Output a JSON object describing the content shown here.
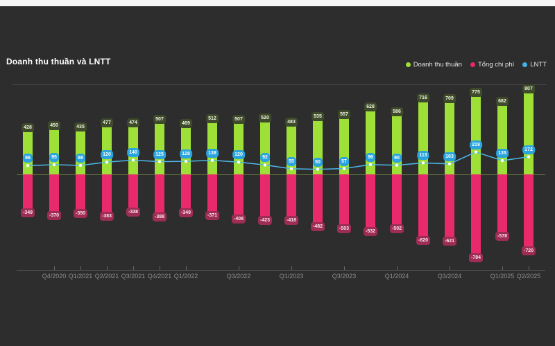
{
  "header": {
    "title": "Doanh thu thuần và LNTT"
  },
  "legend": {
    "items": [
      {
        "label": "Doanh thu thuần",
        "color": "#9ee037"
      },
      {
        "label": "Tổng chi phí",
        "color": "#e8296b"
      },
      {
        "label": "LNTT",
        "color": "#41b1e6"
      }
    ]
  },
  "colors": {
    "background": "#2d2d2d",
    "revenue_bar": "#9ee037",
    "cost_bar": "#e8296b",
    "lntt_line": "#4cb8e8",
    "zero_line": "#66763c",
    "axis_text": "#8f8f8f"
  },
  "chart_data": {
    "type": "bar",
    "title": "Doanh thu thuần và LNTT",
    "xlabel": "",
    "ylabel": "",
    "ylim": [
      -850,
      850
    ],
    "grid": false,
    "legend_position": "top-right",
    "categories": [
      "Q3/2020",
      "Q4/2020",
      "Q1/2021",
      "Q2/2021",
      "Q3/2021",
      "Q4/2021",
      "Q1/2022",
      "Q2/2022",
      "Q3/2022",
      "Q4/2022",
      "Q1/2023",
      "Q2/2023",
      "Q3/2023",
      "Q4/2023",
      "Q1/2024",
      "Q2/2024",
      "Q3/2024",
      "Q4/2024",
      "Q1/2025",
      "Q2/2025"
    ],
    "visible_x_ticks": [
      {
        "index": 1,
        "label": "Q4/2020"
      },
      {
        "index": 2,
        "label": "Q1/2021"
      },
      {
        "index": 3,
        "label": "Q2/2021"
      },
      {
        "index": 4,
        "label": "Q3/2021"
      },
      {
        "index": 5,
        "label": "Q4/2021"
      },
      {
        "index": 6,
        "label": "Q1/2022"
      },
      {
        "index": 8,
        "label": "Q3/2022"
      },
      {
        "index": 10,
        "label": "Q1/2023"
      },
      {
        "index": 12,
        "label": "Q3/2023"
      },
      {
        "index": 14,
        "label": "Q1/2024"
      },
      {
        "index": 16,
        "label": "Q3/2024"
      },
      {
        "index": 18,
        "label": "Q1/2025"
      },
      {
        "index": 19,
        "label": "Q2/2025"
      }
    ],
    "series": [
      {
        "name": "Doanh thu thuần",
        "type": "bar",
        "color": "#9ee037",
        "values": [
          428,
          450,
          435,
          477,
          474,
          507,
          469,
          512,
          507,
          520,
          483,
          535,
          557,
          628,
          586,
          716,
          709,
          775,
          682,
          807
        ]
      },
      {
        "name": "Tổng chi phí",
        "type": "bar",
        "color": "#e8296b",
        "values": [
          -349,
          -370,
          -350,
          -383,
          -338,
          -388,
          -349,
          -371,
          -408,
          -423,
          -418,
          -482,
          -503,
          -532,
          -502,
          -620,
          -621,
          -784,
          -578,
          -720
        ]
      },
      {
        "name": "LNTT",
        "type": "line",
        "color": "#4cb8e8",
        "values": [
          86,
          95,
          88,
          120,
          140,
          125,
          128,
          138,
          120,
          92,
          55,
          50,
          57,
          96,
          90,
          113,
          103,
          219,
          135,
          172
        ]
      }
    ]
  }
}
